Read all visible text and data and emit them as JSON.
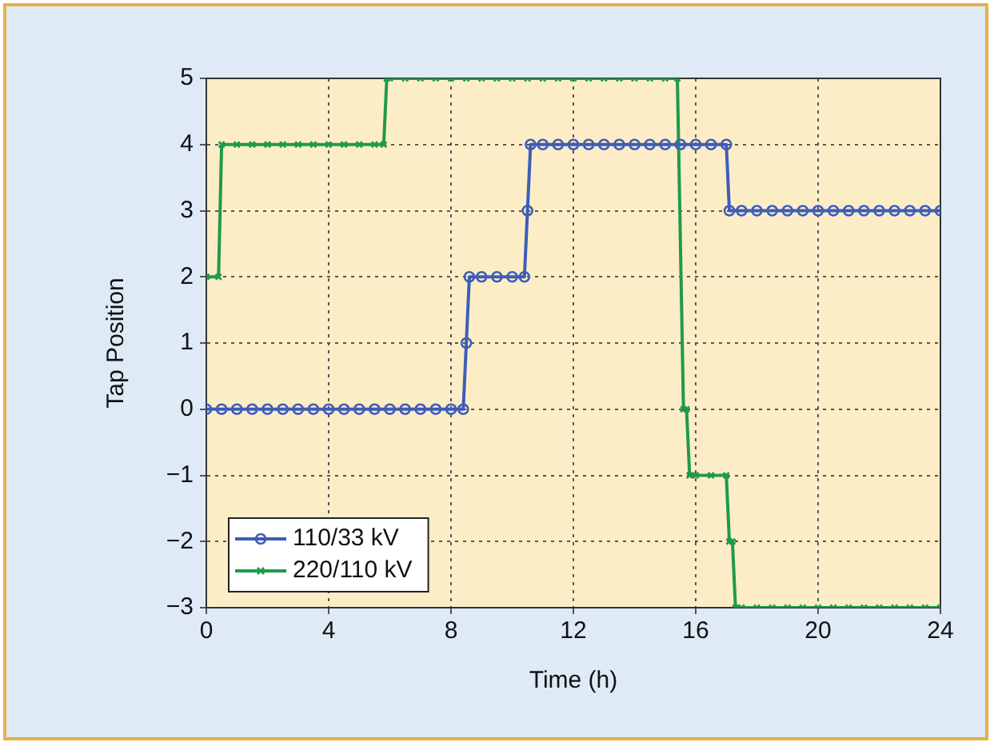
{
  "chart_data": {
    "type": "line",
    "xlabel": "Time (h)",
    "ylabel": "Tap Position",
    "xlim": [
      0,
      24
    ],
    "xticks": [
      0,
      4,
      8,
      12,
      16,
      20,
      24
    ],
    "ylim": [
      -3,
      5
    ],
    "yticks": [
      -3,
      -2,
      -1,
      0,
      1,
      2,
      3,
      4,
      5
    ],
    "grid": true,
    "legend": "bottom left",
    "line_style": "solid",
    "series": [
      {
        "name": "110/33 kV",
        "color": "#3d5db8",
        "marker": "circle",
        "x": [
          0,
          0.5,
          1,
          1.5,
          2,
          2.5,
          3,
          3.5,
          4,
          4.5,
          5,
          5.5,
          6,
          6.5,
          7,
          7.5,
          8,
          8.4,
          8.5,
          8.6,
          9,
          9.5,
          10,
          10.4,
          10.5,
          10.6,
          11,
          11.5,
          12,
          12.5,
          13,
          13.5,
          14,
          14.5,
          15,
          15.5,
          16,
          16.5,
          17,
          17.1,
          17.5,
          18,
          18.5,
          19,
          19.5,
          20,
          20.5,
          21,
          21.5,
          22,
          22.5,
          23,
          23.5,
          24
        ],
        "values": [
          0,
          0,
          0,
          0,
          0,
          0,
          0,
          0,
          0,
          0,
          0,
          0,
          0,
          0,
          0,
          0,
          0,
          0,
          1,
          2,
          2,
          2,
          2,
          2,
          3,
          4,
          4,
          4,
          4,
          4,
          4,
          4,
          4,
          4,
          4,
          4,
          4,
          4,
          4,
          3,
          3,
          3,
          3,
          3,
          3,
          3,
          3,
          3,
          3,
          3,
          3,
          3,
          3,
          3
        ]
      },
      {
        "name": "220/110 kV",
        "color": "#1f9a4c",
        "marker": "cross",
        "x": [
          0,
          0.4,
          0.5,
          1,
          1.5,
          2,
          2.5,
          3,
          3.5,
          4,
          4.5,
          5,
          5.5,
          5.8,
          5.9,
          6,
          6.5,
          7,
          7.5,
          8,
          8.5,
          9,
          9.5,
          10,
          10.5,
          11,
          11.5,
          12,
          12.5,
          13,
          13.5,
          14,
          14.5,
          15,
          15.4,
          15.6,
          15.7,
          15.8,
          16,
          16.5,
          17,
          17.1,
          17.2,
          17.3,
          17.5,
          18,
          18.5,
          19,
          19.5,
          20,
          20.5,
          21,
          21.5,
          22,
          22.5,
          23,
          23.5,
          24
        ],
        "values": [
          2,
          2,
          4,
          4,
          4,
          4,
          4,
          4,
          4,
          4,
          4,
          4,
          4,
          4,
          5,
          5,
          5,
          5,
          5,
          5,
          5,
          5,
          5,
          5,
          5,
          5,
          5,
          5,
          5,
          5,
          5,
          5,
          5,
          5,
          5,
          0,
          0,
          -1,
          -1,
          -1,
          -1,
          -2,
          -2,
          -3,
          -3,
          -3,
          -3,
          -3,
          -3,
          -3,
          -3,
          -3,
          -3,
          -3,
          -3,
          -3,
          -3,
          -3
        ]
      }
    ]
  }
}
